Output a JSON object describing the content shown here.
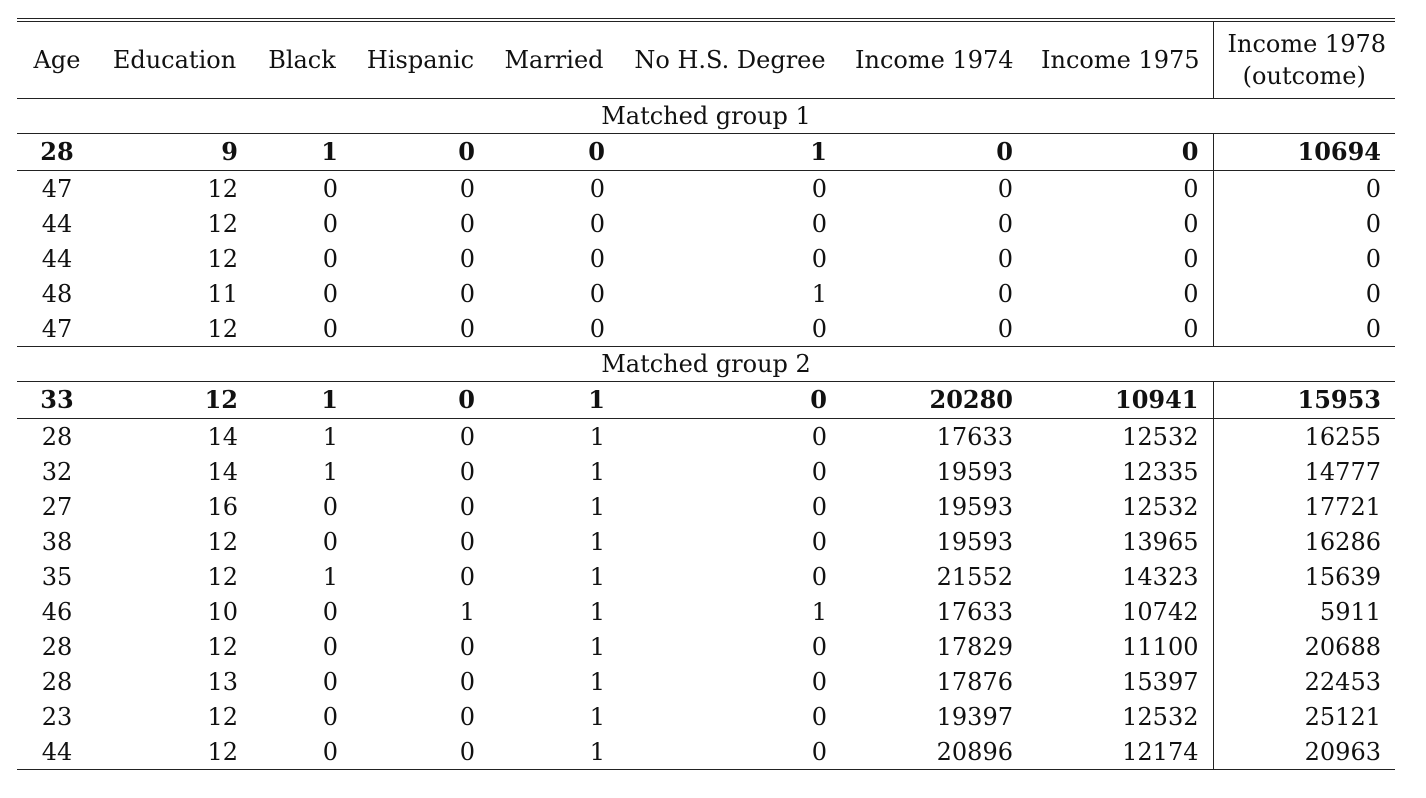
{
  "columns": [
    "Age",
    "Education",
    "Black",
    "Hispanic",
    "Married",
    "No H.S. Degree",
    "Income 1974",
    "Income 1975",
    "Income 1978",
    "(outcome)"
  ],
  "groups": [
    {
      "label": "Matched group 1",
      "treated": [
        "28",
        "9",
        "1",
        "0",
        "0",
        "1",
        "0",
        "0",
        "10694"
      ],
      "controls": [
        [
          "47",
          "12",
          "0",
          "0",
          "0",
          "0",
          "0",
          "0",
          "0"
        ],
        [
          "44",
          "12",
          "0",
          "0",
          "0",
          "0",
          "0",
          "0",
          "0"
        ],
        [
          "44",
          "12",
          "0",
          "0",
          "0",
          "0",
          "0",
          "0",
          "0"
        ],
        [
          "48",
          "11",
          "0",
          "0",
          "0",
          "1",
          "0",
          "0",
          "0"
        ],
        [
          "47",
          "12",
          "0",
          "0",
          "0",
          "0",
          "0",
          "0",
          "0"
        ]
      ]
    },
    {
      "label": "Matched group 2",
      "treated": [
        "33",
        "12",
        "1",
        "0",
        "1",
        "0",
        "20280",
        "10941",
        "15953"
      ],
      "controls": [
        [
          "28",
          "14",
          "1",
          "0",
          "1",
          "0",
          "17633",
          "12532",
          "16255"
        ],
        [
          "32",
          "14",
          "1",
          "0",
          "1",
          "0",
          "19593",
          "12335",
          "14777"
        ],
        [
          "27",
          "16",
          "0",
          "0",
          "1",
          "0",
          "19593",
          "12532",
          "17721"
        ],
        [
          "38",
          "12",
          "0",
          "0",
          "1",
          "0",
          "19593",
          "13965",
          "16286"
        ],
        [
          "35",
          "12",
          "1",
          "0",
          "1",
          "0",
          "21552",
          "14323",
          "15639"
        ],
        [
          "46",
          "10",
          "0",
          "1",
          "1",
          "1",
          "17633",
          "10742",
          "5911"
        ],
        [
          "28",
          "12",
          "0",
          "0",
          "1",
          "0",
          "17829",
          "11100",
          "20688"
        ],
        [
          "28",
          "13",
          "0",
          "0",
          "1",
          "0",
          "17876",
          "15397",
          "22453"
        ],
        [
          "23",
          "12",
          "0",
          "0",
          "1",
          "0",
          "19397",
          "12532",
          "25121"
        ],
        [
          "44",
          "12",
          "0",
          "0",
          "1",
          "0",
          "20896",
          "12174",
          "20963"
        ]
      ]
    }
  ]
}
